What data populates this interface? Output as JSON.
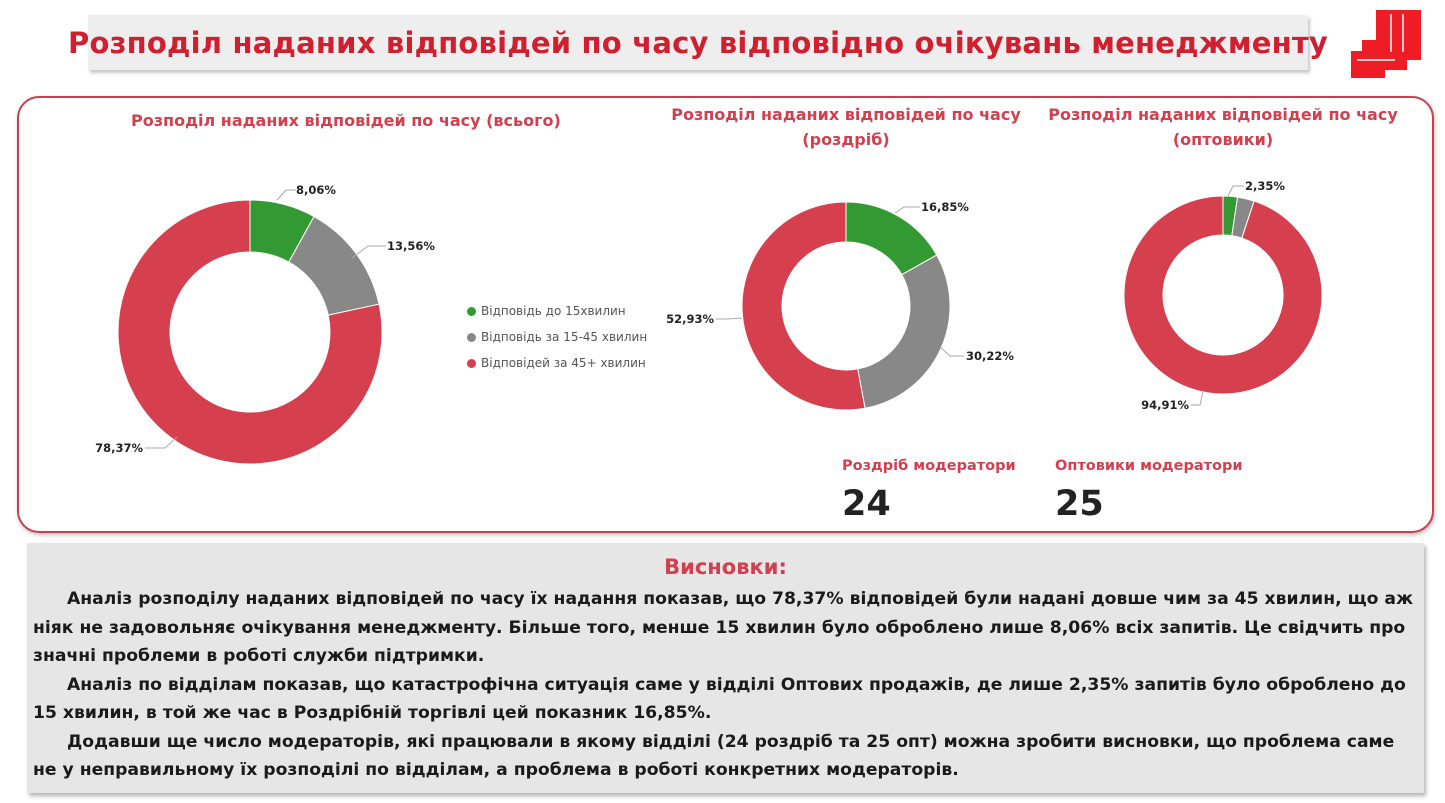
{
  "header": {
    "title": "Розподіл наданих відповідей по часу відповідно очікувань менеджменту"
  },
  "colors": {
    "green": "#339933",
    "gray": "#888888",
    "red": "#d6404e",
    "accent": "#d24050"
  },
  "legend": {
    "items": [
      {
        "label": "Відповідь до 15хвилин",
        "color": "#339933"
      },
      {
        "label": "Відповідь за 15-45 хвилин",
        "color": "#888888"
      },
      {
        "label": "Відповідей за 45+ хвилин",
        "color": "#d6404e"
      }
    ]
  },
  "chart_data": [
    {
      "type": "pie",
      "title": "Розподіл наданих відповідей по часу (всього)",
      "categories": [
        "Відповідь до 15хвилин",
        "Відповідь за 15-45 хвилин",
        "Відповідей за 45+ хвилин"
      ],
      "values": [
        8.06,
        13.56,
        78.37
      ],
      "labels": [
        "8,06%",
        "13,56%",
        "78,37%"
      ],
      "colors": [
        "#339933",
        "#888888",
        "#d6404e"
      ]
    },
    {
      "type": "pie",
      "title": "Розподіл наданих відповідей по часу (роздріб)",
      "categories": [
        "Відповідь до 15хвилин",
        "Відповідь за 15-45 хвилин",
        "Відповідей за 45+ хвилин"
      ],
      "values": [
        16.85,
        30.22,
        52.93
      ],
      "labels": [
        "16,85%",
        "30,22%",
        "52,93%"
      ],
      "colors": [
        "#339933",
        "#888888",
        "#d6404e"
      ]
    },
    {
      "type": "pie",
      "title": "Розподіл наданих відповідей по часу (оптовики)",
      "categories": [
        "Відповідь до 15хвилин",
        "Відповідь за 15-45 хвилин",
        "Відповідей за 45+ хвилин"
      ],
      "values": [
        2.35,
        2.74,
        94.91
      ],
      "labels": [
        "2,35%",
        "",
        "94,91%"
      ],
      "colors": [
        "#339933",
        "#888888",
        "#d6404e"
      ]
    }
  ],
  "charts": {
    "total_title": "Розподіл наданих відповідей по часу (всього)",
    "retail_title_line1": "Розподіл наданих відповідей по часу",
    "retail_title_line2": "(роздріб)",
    "wholesale_title_line1": "Розподіл наданих відповідей по часу",
    "wholesale_title_line2": "(оптовики)"
  },
  "moderators": {
    "retail_label": "Роздріб модератори",
    "retail_value": "24",
    "wholesale_label": "Оптовики модератори",
    "wholesale_value": "25"
  },
  "conclusions": {
    "title": "Висновки:",
    "p1": "Аналіз розподілу наданих відповідей по часу їх надання показав, що 78,37% відповідей були надані довше чим за 45 хвилин, що аж ніяк не задовольняє очікування менеджменту. Більше того, менше 15 хвилин було оброблено лише 8,06% всіх запитів. Це свідчить про значні проблеми в роботі служби підтримки.",
    "p2": "Аналіз по відділам показав, що катастрофічна ситуація саме у відділі Оптових продажів, де лише 2,35% запитів було оброблено до 15 хвилин, в той же час в Роздрібній торгівлі цей показник 16,85%.",
    "p3": "Додавши ще число модераторів, які працювали в якому відділі (24 роздріб та 25 опт) можна зробити висновки, що проблема саме не у неправильному їх розподілі по відділам, а проблема в роботі конкретних модераторів."
  }
}
